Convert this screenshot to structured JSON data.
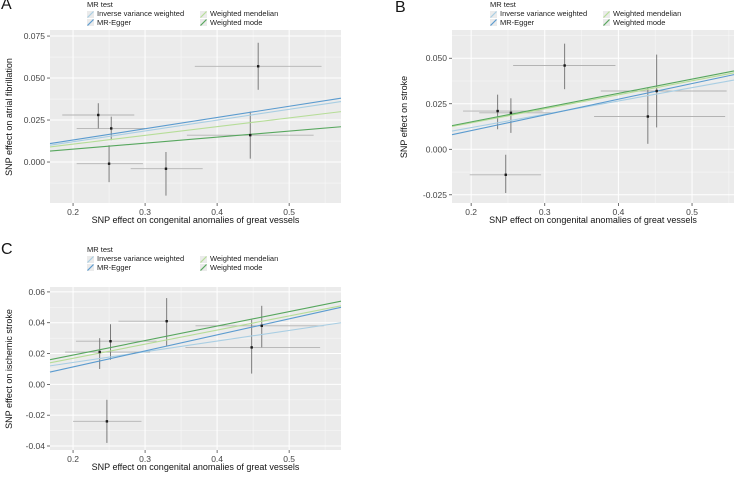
{
  "figure_title": "",
  "style_colors": {
    "plot_background": "#ebebeb",
    "grid_major": "#ffffff",
    "grid_minor": "#f7f7f7",
    "errorbar_horizontal": "#b3b3b3",
    "errorbar_vertical": "#6f6f6f",
    "point": "#1a1a1a",
    "tick_text": "#454545",
    "axis_title_text": "#141414",
    "ivw_blue_light": "#a9cee3",
    "egger_blue": "#5b9bcf",
    "median_green_light": "#b6dd98",
    "mode_green": "#57a75e"
  },
  "chart_data": [
    {
      "type": "scatter",
      "panel_label": "A",
      "xlabel": "SNP effect on congenital anomalies of great vessels",
      "ylabel": "SNP effect on atrial fibrillation",
      "legend": {
        "title": "MR test",
        "items": [
          {
            "label": "Inverse variance weighted",
            "color": "#a9cee3"
          },
          {
            "label": "MR-Egger",
            "color": "#5b9bcf"
          },
          {
            "label": "Weighted mendelian",
            "color": "#b6dd98"
          },
          {
            "label": "Weighted mode",
            "color": "#57a75e"
          }
        ]
      },
      "xlim": [
        0.168,
        0.572
      ],
      "ylim": [
        -0.0244,
        0.0786
      ],
      "xticks": {
        "values": [
          0.2,
          0.3,
          0.4,
          0.5
        ],
        "labels": [
          "0.2",
          "0.3",
          "0.4",
          "0.5"
        ]
      },
      "yticks": {
        "values": [
          0.0,
          0.025,
          0.05,
          0.075
        ],
        "labels": [
          "0.000",
          "0.025",
          "0.050",
          "0.075"
        ]
      },
      "grid": true,
      "legend_position": "top",
      "points": [
        {
          "x": 0.235,
          "y": 0.028,
          "xlo": 0.185,
          "xhi": 0.285,
          "ylo": 0.02,
          "yhi": 0.035
        },
        {
          "x": 0.253,
          "y": 0.02,
          "xlo": 0.205,
          "xhi": 0.3,
          "ylo": 0.013,
          "yhi": 0.027
        },
        {
          "x": 0.25,
          "y": -0.001,
          "xlo": 0.205,
          "xhi": 0.297,
          "ylo": -0.012,
          "yhi": 0.01
        },
        {
          "x": 0.329,
          "y": -0.004,
          "xlo": 0.28,
          "xhi": 0.38,
          "ylo": -0.02,
          "yhi": 0.006
        },
        {
          "x": 0.457,
          "y": 0.057,
          "xlo": 0.369,
          "xhi": 0.545,
          "ylo": 0.043,
          "yhi": 0.071
        },
        {
          "x": 0.446,
          "y": 0.016,
          "xlo": 0.358,
          "xhi": 0.534,
          "ylo": 0.002,
          "yhi": 0.03
        }
      ],
      "lines": [
        {
          "name": "Inverse variance weighted",
          "color": "#a9cee3",
          "y_at_xmin": 0.01,
          "y_at_xmax": 0.036
        },
        {
          "name": "MR-Egger",
          "color": "#5b9bcf",
          "y_at_xmin": 0.011,
          "y_at_xmax": 0.038
        },
        {
          "name": "Weighted mendelian",
          "color": "#b6dd98",
          "y_at_xmin": 0.009,
          "y_at_xmax": 0.03
        },
        {
          "name": "Weighted mode",
          "color": "#57a75e",
          "y_at_xmin": 0.0065,
          "y_at_xmax": 0.021
        }
      ]
    },
    {
      "type": "scatter",
      "panel_label": "B",
      "xlabel": "SNP effect on congenital anomalies of great vessels",
      "ylabel": "SNP effect on stroke",
      "legend": {
        "title": "MR test",
        "items": [
          {
            "label": "Inverse variance weighted",
            "color": "#a9cee3"
          },
          {
            "label": "MR-Egger",
            "color": "#5b9bcf"
          },
          {
            "label": "Weighted mendelian",
            "color": "#b6dd98"
          },
          {
            "label": "Weighted mode",
            "color": "#57a75e"
          }
        ]
      },
      "xlim": [
        0.174,
        0.557
      ],
      "ylim": [
        -0.0295,
        0.0655
      ],
      "xticks": {
        "values": [
          0.2,
          0.3,
          0.4,
          0.5
        ],
        "labels": [
          "0.2",
          "0.3",
          "0.4",
          "0.5"
        ]
      },
      "yticks": {
        "values": [
          -0.025,
          0.0,
          0.025,
          0.05
        ],
        "labels": [
          "-0.025",
          "0.000",
          "0.025",
          "0.050"
        ]
      },
      "grid": true,
      "legend_position": "top",
      "points": [
        {
          "x": 0.236,
          "y": 0.021,
          "xlo": 0.189,
          "xhi": 0.297,
          "ylo": 0.011,
          "yhi": 0.03
        },
        {
          "x": 0.254,
          "y": 0.02,
          "xlo": 0.211,
          "xhi": 0.313,
          "ylo": 0.009,
          "yhi": 0.028
        },
        {
          "x": 0.247,
          "y": -0.014,
          "xlo": 0.198,
          "xhi": 0.295,
          "ylo": -0.024,
          "yhi": -0.003
        },
        {
          "x": 0.327,
          "y": 0.046,
          "xlo": 0.257,
          "xhi": 0.396,
          "ylo": 0.033,
          "yhi": 0.058
        },
        {
          "x": 0.452,
          "y": 0.032,
          "xlo": 0.376,
          "xhi": 0.547,
          "ylo": 0.012,
          "yhi": 0.052
        },
        {
          "x": 0.44,
          "y": 0.018,
          "xlo": 0.367,
          "xhi": 0.545,
          "ylo": 0.003,
          "yhi": 0.034
        }
      ],
      "lines": [
        {
          "name": "Inverse variance weighted",
          "color": "#a9cee3",
          "y_at_xmin": 0.01,
          "y_at_xmax": 0.038
        },
        {
          "name": "MR-Egger",
          "color": "#5b9bcf",
          "y_at_xmin": 0.008,
          "y_at_xmax": 0.041
        },
        {
          "name": "Weighted mendelian",
          "color": "#b6dd98",
          "y_at_xmin": 0.0125,
          "y_at_xmax": 0.042
        },
        {
          "name": "Weighted mode",
          "color": "#57a75e",
          "y_at_xmin": 0.013,
          "y_at_xmax": 0.043
        }
      ]
    },
    {
      "type": "scatter",
      "panel_label": "C",
      "xlabel": "SNP effect on congenital anomalies of great vessels",
      "ylabel": "SNP effect on ischemic stroke",
      "legend": {
        "title": "MR test",
        "items": [
          {
            "label": "Inverse variance weighted",
            "color": "#a9cee3"
          },
          {
            "label": "MR-Egger",
            "color": "#5b9bcf"
          },
          {
            "label": "Weighted mendelian",
            "color": "#b6dd98"
          },
          {
            "label": "Weighted mode",
            "color": "#57a75e"
          }
        ]
      },
      "xlim": [
        0.168,
        0.572
      ],
      "ylim": [
        -0.0426,
        0.0632
      ],
      "xticks": {
        "values": [
          0.2,
          0.3,
          0.4,
          0.5
        ],
        "labels": [
          "0.2",
          "0.3",
          "0.4",
          "0.5"
        ]
      },
      "yticks": {
        "values": [
          -0.04,
          -0.02,
          0.0,
          0.02,
          0.04,
          0.06
        ],
        "labels": [
          "-0.04",
          "-0.02",
          "0.00",
          "0.02",
          "0.04",
          "0.06"
        ]
      },
      "grid": true,
      "legend_position": "top",
      "points": [
        {
          "x": 0.237,
          "y": 0.021,
          "xlo": 0.189,
          "xhi": 0.307,
          "ylo": 0.01,
          "yhi": 0.03
        },
        {
          "x": 0.252,
          "y": 0.028,
          "xlo": 0.204,
          "xhi": 0.316,
          "ylo": 0.016,
          "yhi": 0.039
        },
        {
          "x": 0.247,
          "y": -0.024,
          "xlo": 0.2,
          "xhi": 0.295,
          "ylo": -0.038,
          "yhi": -0.01
        },
        {
          "x": 0.33,
          "y": 0.041,
          "xlo": 0.263,
          "xhi": 0.402,
          "ylo": 0.025,
          "yhi": 0.056
        },
        {
          "x": 0.462,
          "y": 0.038,
          "xlo": 0.37,
          "xhi": 0.548,
          "ylo": 0.024,
          "yhi": 0.051
        },
        {
          "x": 0.448,
          "y": 0.024,
          "xlo": 0.356,
          "xhi": 0.543,
          "ylo": 0.007,
          "yhi": 0.042
        }
      ],
      "lines": [
        {
          "name": "Inverse variance weighted",
          "color": "#a9cee3",
          "y_at_xmin": 0.012,
          "y_at_xmax": 0.04
        },
        {
          "name": "MR-Egger",
          "color": "#5b9bcf",
          "y_at_xmin": 0.008,
          "y_at_xmax": 0.05
        },
        {
          "name": "Weighted mendelian",
          "color": "#b6dd98",
          "y_at_xmin": 0.014,
          "y_at_xmax": 0.051
        },
        {
          "name": "Weighted mode",
          "color": "#57a75e",
          "y_at_xmin": 0.016,
          "y_at_xmax": 0.054
        }
      ]
    }
  ]
}
